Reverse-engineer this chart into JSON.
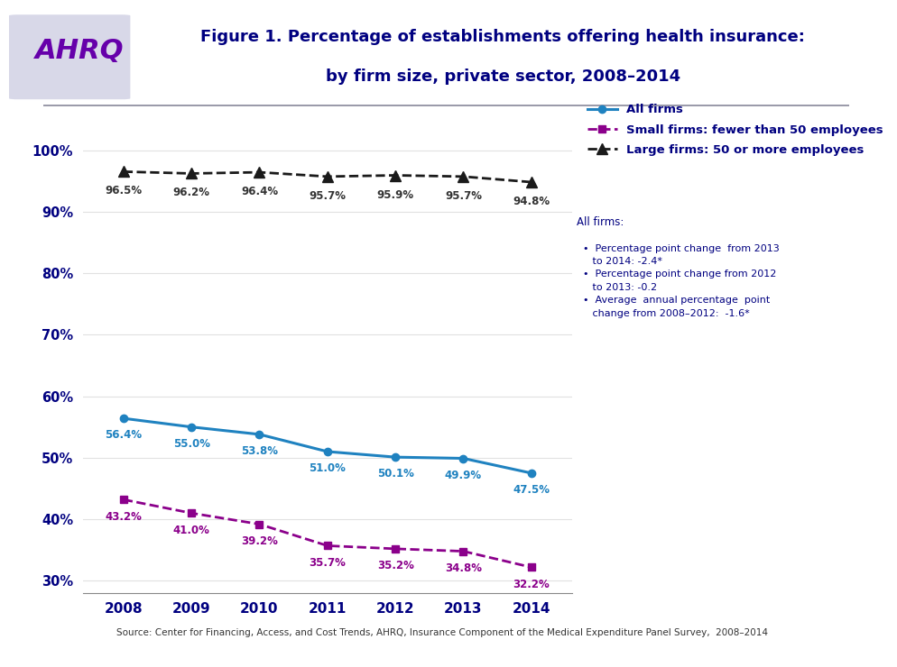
{
  "title_line1": "Figure 1. Percentage of establishments offering health insurance:",
  "title_line2": "by firm size, private sector, 2008–2014",
  "years": [
    2008,
    2009,
    2010,
    2011,
    2012,
    2013,
    2014
  ],
  "all_firms": [
    56.4,
    55.0,
    53.8,
    51.0,
    50.1,
    49.9,
    47.5
  ],
  "small_firms": [
    43.2,
    41.0,
    39.2,
    35.7,
    35.2,
    34.8,
    32.2
  ],
  "large_firms": [
    96.5,
    96.2,
    96.4,
    95.7,
    95.9,
    95.7,
    94.8
  ],
  "all_firms_color": "#1F82C0",
  "small_firms_color": "#8B008B",
  "large_firms_color": "#1A1A1A",
  "title_color": "#000080",
  "label_color_all": "#1F82C0",
  "label_color_small": "#8B008B",
  "label_color_large": "#333333",
  "ylim": [
    28,
    105
  ],
  "yticks": [
    30,
    40,
    50,
    60,
    70,
    80,
    90,
    100
  ],
  "ytick_labels": [
    "30%",
    "40%",
    "50%",
    "60%",
    "70%",
    "80%",
    "90%",
    "100%"
  ],
  "header_bg": "#D8D8E8",
  "footer_text": "Source: Center for Financing, Access, and Cost Trends, AHRQ, Insurance Component of the Medical Expenditure Panel Survey,  2008–2014",
  "legend_labels": [
    "All firms",
    "Small firms: fewer than 50 employees",
    "Large firms: 50 or more employees"
  ],
  "annot_title": "All firms:",
  "annot_body": "  •  Percentage point change  from 2013\n     to 2014: -2.4*\n  •  Percentage point change from 2012\n     to 2013: -0.2\n  •  Average  annual percentage  point\n     change from 2008–2012:  -1.6*"
}
